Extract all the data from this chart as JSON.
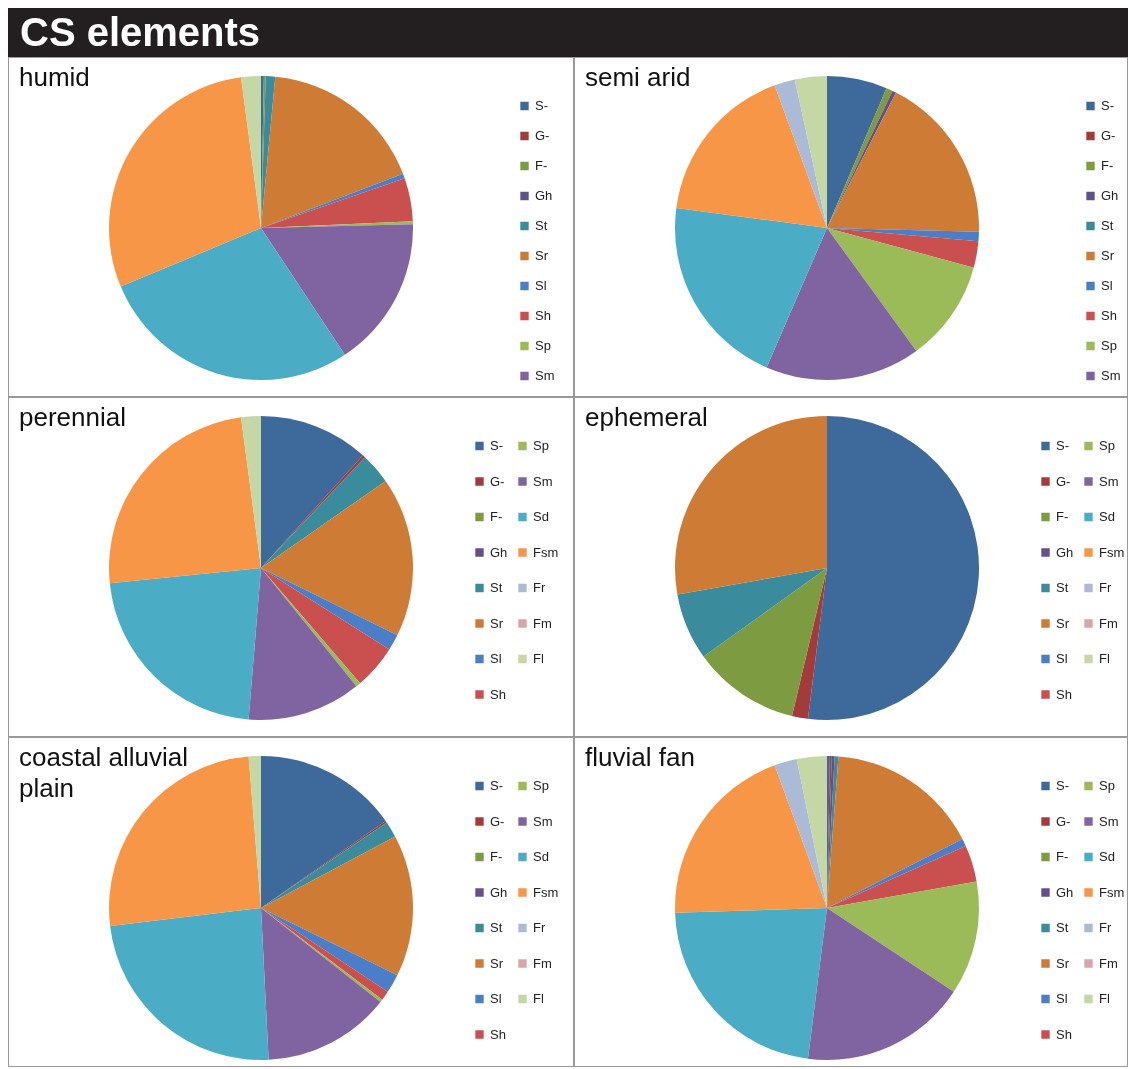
{
  "chart_data": [
    {
      "type": "pie",
      "title": "humid",
      "annotations": [
        "CS elements"
      ],
      "legend": "right",
      "categories": [
        "S-",
        "G-",
        "F-",
        "Gh",
        "St",
        "Sr",
        "Sl",
        "Sh",
        "Sp",
        "Sm",
        null,
        null,
        null,
        null,
        null
      ],
      "values": [
        0.3,
        0,
        0.2,
        0,
        1.0,
        17.7,
        0.5,
        4.6,
        0.3,
        16.1,
        28,
        29.2,
        0,
        0,
        2.1
      ],
      "colors": [
        "#3e6a9b",
        "#a33b3b",
        "#7d9b41",
        "#634f8a",
        "#3a8b9b",
        "#cd7b35",
        "#4a7ec8",
        "#c9504e",
        "#9bbb59",
        "#8064a2",
        "#4bacc6",
        "#f79646",
        "#aabad7",
        "#d9a5a5",
        "#c4d7a4"
      ]
    },
    {
      "type": "pie",
      "title": "semi arid",
      "legend": "right",
      "categories": [
        "S-",
        "G-",
        "F-",
        "Gh",
        "St",
        "Sr",
        "Sl",
        "Sh",
        "Sp",
        "Sm",
        null,
        null,
        null,
        null,
        null
      ],
      "values": [
        6.4,
        0,
        0.7,
        0.4,
        0,
        17.9,
        1,
        2.8,
        10.8,
        16.5,
        20.6,
        17.3,
        2.2,
        0,
        3.4
      ],
      "colors": [
        "#3e6a9b",
        "#a33b3b",
        "#7d9b41",
        "#634f8a",
        "#3a8b9b",
        "#cd7b35",
        "#4a7ec8",
        "#c9504e",
        "#9bbb59",
        "#8064a2",
        "#4bacc6",
        "#f79646",
        "#aabad7",
        "#d9a5a5",
        "#c4d7a4"
      ]
    },
    {
      "type": "pie",
      "title": "perennial",
      "legend": "right",
      "categories": [
        "S-",
        "G-",
        "F-",
        "Gh",
        "St",
        "Sr",
        "Sl",
        "Sh",
        "Sp",
        "Sm",
        "Sd",
        "Fsm",
        "Fr",
        "Fm",
        "Fl"
      ],
      "values": [
        11.7,
        0.3,
        0,
        0,
        3.3,
        17,
        1.7,
        4.7,
        0.5,
        12.1,
        22.1,
        24.5,
        0,
        0,
        2.1
      ],
      "colors": [
        "#3e6a9b",
        "#a33b3b",
        "#7d9b41",
        "#634f8a",
        "#3a8b9b",
        "#cd7b35",
        "#4a7ec8",
        "#c9504e",
        "#9bbb59",
        "#8064a2",
        "#4bacc6",
        "#f79646",
        "#aabad7",
        "#d9a5a5",
        "#c4d7a4"
      ]
    },
    {
      "type": "pie",
      "title": "ephemeral",
      "legend": "right",
      "categories": [
        "S-",
        "G-",
        "F-",
        "Gh",
        "St",
        "Sr",
        "Sl",
        "Sh",
        "Sp",
        "Sm",
        "Sd",
        "Fsm",
        "Fr",
        "Fm",
        "Fl"
      ],
      "values": [
        52,
        1.7,
        11.4,
        0,
        7.1,
        27.8,
        0,
        0,
        0,
        0,
        0,
        0,
        0,
        0,
        0
      ],
      "colors": [
        "#3e6a9b",
        "#a33b3b",
        "#7d9b41",
        "#634f8a",
        "#3a8b9b",
        "#cd7b35",
        "#4a7ec8",
        "#c9504e",
        "#9bbb59",
        "#8064a2",
        "#4bacc6",
        "#f79646",
        "#aabad7",
        "#d9a5a5",
        "#c4d7a4"
      ]
    },
    {
      "type": "pie",
      "title": "coastal alluvial plain",
      "legend": "right",
      "categories": [
        "S-",
        "G-",
        "F-",
        "Gh",
        "St",
        "Sr",
        "Sl",
        "Sh",
        "Sp",
        "Sm",
        "Sd",
        "Fsm",
        "Fr",
        "Fm",
        "Fl"
      ],
      "values": [
        15.3,
        0.2,
        0,
        0,
        1.7,
        15.1,
        2,
        1,
        0.3,
        13.6,
        23.9,
        25.6,
        0,
        0,
        1.3
      ],
      "colors": [
        "#3e6a9b",
        "#a33b3b",
        "#7d9b41",
        "#634f8a",
        "#3a8b9b",
        "#cd7b35",
        "#4a7ec8",
        "#c9504e",
        "#9bbb59",
        "#8064a2",
        "#4bacc6",
        "#f79646",
        "#aabad7",
        "#d9a5a5",
        "#c4d7a4"
      ]
    },
    {
      "type": "pie",
      "title": "fluvial fan",
      "legend": "right",
      "categories": [
        "S-",
        "G-",
        "F-",
        "Gh",
        "St",
        "Sr",
        "Sl",
        "Sh",
        "Sp",
        "Sm",
        "Sd",
        "Fsm",
        "Fr",
        "Fm",
        "Fl"
      ],
      "values": [
        0.3,
        0.2,
        0,
        0.3,
        0.4,
        16.3,
        0.8,
        3.9,
        12.1,
        17.7,
        22.5,
        19.9,
        2.4,
        0,
        3.2
      ],
      "colors": [
        "#3e6a9b",
        "#a33b3b",
        "#7d9b41",
        "#634f8a",
        "#3a8b9b",
        "#cd7b35",
        "#4a7ec8",
        "#c9504e",
        "#9bbb59",
        "#8064a2",
        "#4bacc6",
        "#f79646",
        "#aabad7",
        "#d9a5a5",
        "#c4d7a4"
      ]
    }
  ]
}
